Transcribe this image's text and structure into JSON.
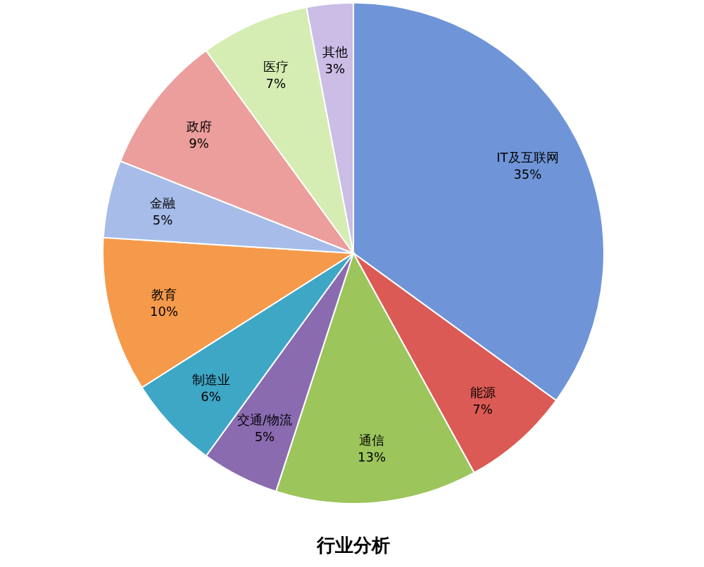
{
  "chart_data": {
    "type": "pie",
    "title": "行业分析",
    "categories": [
      "IT及互联网",
      "能源",
      "通信",
      "交通/物流",
      "制造业",
      "教育",
      "金融",
      "政府",
      "医疗",
      "其他"
    ],
    "values": [
      35,
      7,
      13,
      5,
      6,
      10,
      5,
      9,
      7,
      3
    ],
    "value_labels": [
      "35%",
      "7%",
      "13%",
      "5%",
      "6%",
      "10%",
      "5%",
      "9%",
      "7%",
      "3%"
    ],
    "colors": [
      "#6f95d8",
      "#dc5a55",
      "#9cc55b",
      "#8a6bb0",
      "#3fa7c6",
      "#f59a4a",
      "#a7bce8",
      "#eb9e9b",
      "#d5edb3",
      "#cbbde6"
    ],
    "legend": false
  }
}
